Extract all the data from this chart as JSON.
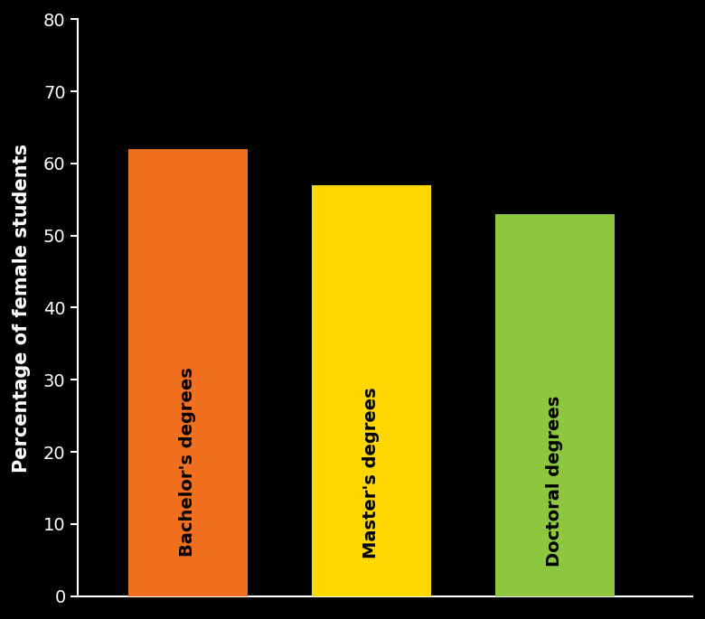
{
  "categories": [
    "Bachelor's degrees",
    "Master's degrees",
    "Doctoral degrees"
  ],
  "values": [
    62,
    57,
    53
  ],
  "bar_colors": [
    "#F07020",
    "#FFD700",
    "#8DC63F"
  ],
  "ylabel": "Percentage of female students",
  "ylim": [
    0,
    80
  ],
  "yticks": [
    0,
    10,
    20,
    30,
    40,
    50,
    60,
    70,
    80
  ],
  "background_color": "#000000",
  "text_color": "#ffffff",
  "axis_color": "#ffffff",
  "bar_label_color": "#000000",
  "bar_width": 0.65,
  "ylabel_fontsize": 15,
  "tick_fontsize": 14,
  "bar_label_fontsize": 14
}
